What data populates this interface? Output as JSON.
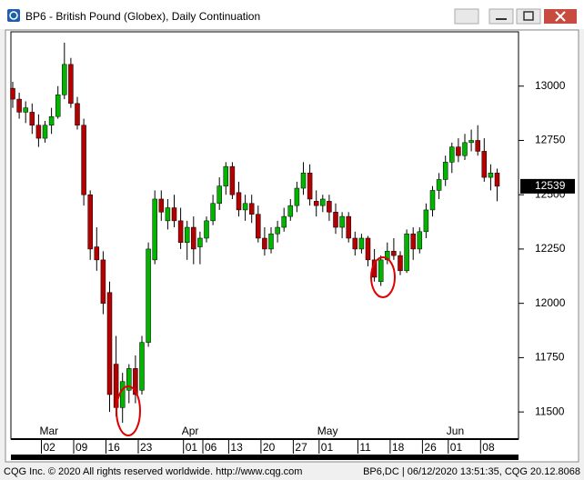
{
  "chart_data": {
    "type": "candlestick",
    "title": "BP6 - British Pound (Globex), Daily Continuation",
    "footer_left": "CQG Inc. © 2020 All rights reserved worldwide. http://www.cqg.com",
    "footer_right": "BP6,DC | 06/12/2020 13:51:35, CQG 20.12.8068",
    "up_color": "#00b400",
    "down_color": "#b40000",
    "categories": [
      null,
      null,
      null,
      null,
      null,
      "02",
      null,
      null,
      null,
      null,
      "09",
      null,
      null,
      null,
      null,
      "16",
      null,
      null,
      null,
      null,
      "23",
      null,
      null,
      null,
      null,
      null,
      null,
      "01",
      null,
      null,
      "06",
      null,
      null,
      null,
      "13",
      null,
      null,
      null,
      null,
      "20",
      null,
      null,
      null,
      null,
      "27",
      null,
      null,
      null,
      "01",
      null,
      null,
      null,
      null,
      null,
      "11",
      null,
      null,
      null,
      null,
      "18",
      null,
      null,
      null,
      null,
      "26",
      null,
      null,
      null,
      "01",
      null,
      null,
      null,
      null,
      "08",
      null,
      null
    ],
    "months": [
      null,
      null,
      null,
      null,
      null,
      "Mar",
      null,
      null,
      null,
      null,
      null,
      null,
      null,
      null,
      null,
      null,
      null,
      null,
      null,
      null,
      null,
      null,
      null,
      null,
      null,
      null,
      null,
      "Apr",
      null,
      null,
      null,
      null,
      null,
      null,
      null,
      null,
      null,
      null,
      null,
      null,
      null,
      null,
      null,
      null,
      null,
      null,
      null,
      null,
      "May",
      null,
      null,
      null,
      null,
      null,
      null,
      null,
      null,
      null,
      null,
      null,
      null,
      null,
      null,
      null,
      null,
      null,
      null,
      null,
      "Jun",
      null,
      null,
      null,
      null,
      null,
      null,
      null
    ],
    "open": [
      12990,
      12940,
      12880,
      12880,
      12820,
      12760,
      12820,
      12860,
      12960,
      13100,
      12920,
      12820,
      12500,
      12260,
      12200,
      12050,
      11720,
      11520,
      11600,
      11700,
      11600,
      11820,
      12200,
      12480,
      12380,
      12440,
      12380,
      12280,
      12350,
      12260,
      12300,
      12380,
      12460,
      12540,
      12630,
      12510,
      12430,
      12460,
      12410,
      12300,
      12250,
      12320,
      12350,
      12400,
      12450,
      12530,
      12600,
      12470,
      12450,
      12470,
      12420,
      12350,
      12400,
      12300,
      12250,
      12300,
      12200,
      12100,
      12200,
      12240,
      12220,
      12150,
      12320,
      12250,
      12330,
      12430,
      12520,
      12570,
      12650,
      12720,
      12680,
      12740,
      12750,
      12700,
      12580,
      12600
    ],
    "high": [
      13020,
      12970,
      12930,
      12920,
      12870,
      12840,
      12900,
      13000,
      13200,
      13130,
      12950,
      12850,
      12520,
      12350,
      12240,
      12100,
      11850,
      11680,
      11720,
      11760,
      11850,
      12280,
      12520,
      12520,
      12480,
      12500,
      12440,
      12380,
      12400,
      12330,
      12400,
      12500,
      12580,
      12650,
      12650,
      12560,
      12500,
      12500,
      12450,
      12350,
      12350,
      12380,
      12440,
      12480,
      12560,
      12650,
      12640,
      12520,
      12500,
      12500,
      12460,
      12420,
      12420,
      12330,
      12320,
      12310,
      12250,
      12220,
      12280,
      12300,
      12240,
      12340,
      12350,
      12350,
      12460,
      12540,
      12600,
      12680,
      12740,
      12760,
      12780,
      12800,
      12820,
      12760,
      12640,
      12620
    ],
    "low": [
      12900,
      12850,
      12830,
      12780,
      12720,
      12740,
      12780,
      12850,
      12940,
      12900,
      12800,
      12450,
      12200,
      12150,
      11950,
      11500,
      11480,
      11450,
      11540,
      11540,
      11580,
      11800,
      12180,
      12380,
      12340,
      12350,
      12250,
      12200,
      12180,
      12180,
      12280,
      12360,
      12430,
      12500,
      12480,
      12400,
      12380,
      12370,
      12280,
      12220,
      12230,
      12280,
      12330,
      12380,
      12420,
      12500,
      12450,
      12400,
      12420,
      12380,
      12320,
      12300,
      12280,
      12220,
      12230,
      12170,
      12100,
      12080,
      12180,
      12200,
      12130,
      12140,
      12200,
      12230,
      12300,
      12400,
      12480,
      12540,
      12600,
      12650,
      12660,
      12700,
      12680,
      12560,
      12520,
      12470
    ],
    "close": [
      12940,
      12880,
      12900,
      12820,
      12760,
      12820,
      12860,
      12960,
      13100,
      12920,
      12820,
      12500,
      12250,
      12200,
      12000,
      11580,
      11520,
      11640,
      11700,
      11580,
      11820,
      12250,
      12480,
      12420,
      12440,
      12380,
      12280,
      12350,
      12250,
      12300,
      12380,
      12460,
      12540,
      12630,
      12500,
      12430,
      12460,
      12410,
      12300,
      12250,
      12320,
      12350,
      12400,
      12450,
      12530,
      12600,
      12480,
      12450,
      12480,
      12420,
      12350,
      12400,
      12300,
      12250,
      12300,
      12200,
      12120,
      12200,
      12240,
      12220,
      12150,
      12320,
      12250,
      12330,
      12430,
      12520,
      12570,
      12650,
      12720,
      12680,
      12740,
      12750,
      12700,
      12580,
      12600,
      12539
    ],
    "ylim": [
      11375,
      13250
    ],
    "yticks": [
      11500,
      11750,
      12000,
      12250,
      12500,
      12750,
      13000
    ]
  }
}
